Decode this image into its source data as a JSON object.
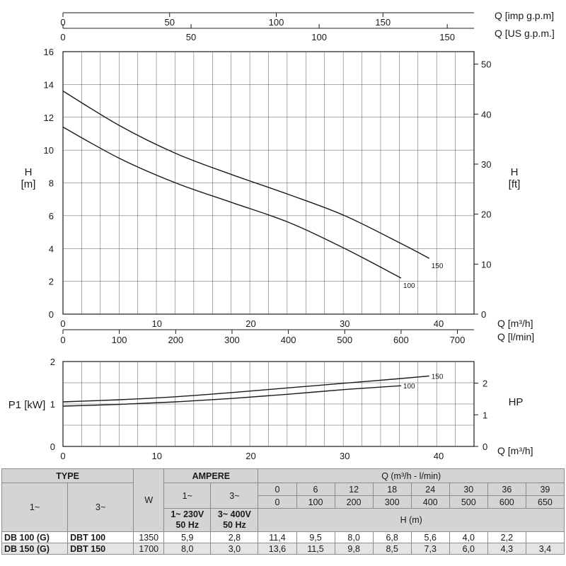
{
  "chart_data": [
    {
      "type": "line",
      "xlabel": "Q [m³/h]",
      "xlabel_secondary": "Q [l/min]",
      "top_axis_labels": [
        "Q [imp g.p.m]",
        "Q [US g.p.m.]"
      ],
      "ylabel": [
        "H",
        "[m]"
      ],
      "ylabel_right": [
        "H",
        "[ft]"
      ],
      "xlim": [
        0,
        44
      ],
      "ylim": [
        0,
        16
      ],
      "grid": true,
      "x_ticks": [
        0,
        10,
        20,
        30,
        40
      ],
      "y_ticks": [
        0,
        2,
        4,
        6,
        8,
        10,
        12,
        14,
        16
      ],
      "x_ticks_lmin": [
        0,
        100,
        200,
        300,
        400,
        500,
        600,
        700
      ],
      "y_ticks_ft": [
        0,
        10,
        20,
        30,
        40,
        50
      ],
      "x_ticks_imp_gpm": [
        0,
        50,
        100,
        150
      ],
      "x_ticks_us_gpm": [
        0,
        50,
        100,
        150
      ],
      "series": [
        {
          "name": "100",
          "x": [
            0,
            6,
            12,
            18,
            24,
            30,
            36
          ],
          "values": [
            11.4,
            9.5,
            8.0,
            6.8,
            5.6,
            4.0,
            2.2
          ]
        },
        {
          "name": "150",
          "x": [
            0,
            6,
            12,
            18,
            24,
            30,
            36,
            39
          ],
          "values": [
            13.6,
            11.5,
            9.8,
            8.5,
            7.3,
            6.0,
            4.3,
            3.4
          ]
        }
      ]
    },
    {
      "type": "line",
      "xlabel": "Q [m³/h]",
      "ylabel": "P1 [kW]",
      "ylabel_right": "HP",
      "xlim": [
        0,
        44
      ],
      "ylim": [
        0,
        2
      ],
      "grid": true,
      "x_ticks": [
        0,
        10,
        20,
        30,
        40
      ],
      "y_ticks": [
        0,
        1,
        2
      ],
      "y_ticks_hp": [
        0,
        1,
        2
      ],
      "series": [
        {
          "name": "100",
          "x": [
            0,
            6,
            12,
            18,
            24,
            30,
            36
          ],
          "values": [
            0.95,
            0.99,
            1.05,
            1.13,
            1.23,
            1.34,
            1.43
          ]
        },
        {
          "name": "150",
          "x": [
            0,
            6,
            12,
            18,
            24,
            30,
            36,
            39
          ],
          "values": [
            1.05,
            1.1,
            1.17,
            1.27,
            1.38,
            1.49,
            1.6,
            1.66
          ]
        }
      ]
    }
  ],
  "table": {
    "type_header": "TYPE",
    "w_header": "W",
    "ampere_header": "AMPERE",
    "q_header": "Q (m³/h - l/min)",
    "phase1": "1~",
    "phase3": "3~",
    "amp1_supply": [
      "1~ 230V",
      "50 Hz"
    ],
    "amp3_supply": [
      "3~ 400V",
      "50 Hz"
    ],
    "q_m3h": [
      "0",
      "6",
      "12",
      "18",
      "24",
      "30",
      "36",
      "39"
    ],
    "q_lmin": [
      "0",
      "100",
      "200",
      "300",
      "400",
      "500",
      "600",
      "650"
    ],
    "h_header": "H (m)",
    "rows": [
      {
        "t1": "DB 100 (G)",
        "t3": "DBT 100",
        "w": "1350",
        "a1": "5,9",
        "a3": "2,8",
        "h": [
          "11,4",
          "9,5",
          "8,0",
          "6,8",
          "5,6",
          "4,0",
          "2,2",
          ""
        ]
      },
      {
        "t1": "DB 150 (G)",
        "t3": "DBT 150",
        "w": "1700",
        "a1": "8,0",
        "a3": "3,0",
        "h": [
          "13,6",
          "11,5",
          "9,8",
          "8,5",
          "7,3",
          "6,0",
          "4,3",
          "3,4"
        ]
      }
    ]
  }
}
